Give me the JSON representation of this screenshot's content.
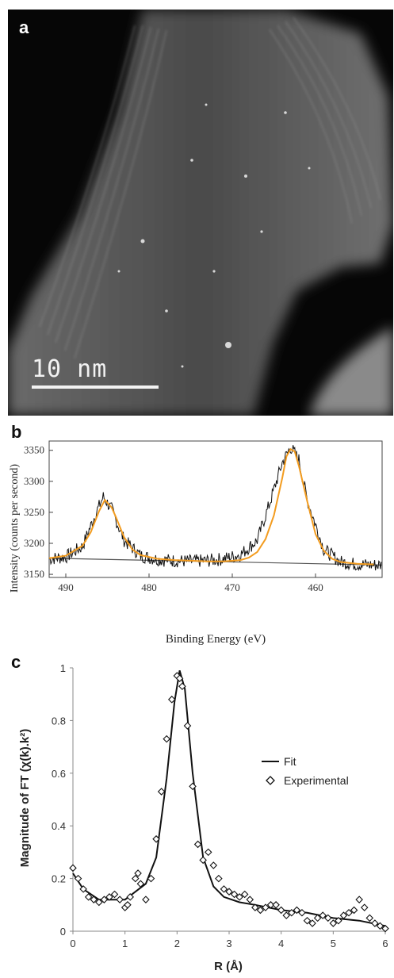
{
  "panel_a": {
    "letter": "a",
    "scale_bar": "10 nm"
  },
  "chart_data": [
    {
      "panel": "b",
      "type": "line",
      "xlabel": "Binding Energy (eV)",
      "ylabel": "Intensity (counts per second)",
      "xlim": [
        492,
        452
      ],
      "ylim": [
        3145,
        3365
      ],
      "x_ticks": [
        490,
        480,
        470,
        460
      ],
      "y_ticks": [
        3150,
        3200,
        3250,
        3300,
        3350
      ],
      "series": [
        {
          "style": "noisy data trace",
          "color": "#111111",
          "x": [
            492,
            490,
            488,
            486.5,
            485.5,
            484.5,
            483,
            481,
            479,
            477,
            475,
            473,
            471,
            469,
            467,
            465.5,
            464,
            463,
            462,
            461,
            459,
            457,
            455,
            453
          ],
          "y": [
            3175,
            3178,
            3195,
            3245,
            3275,
            3255,
            3205,
            3180,
            3174,
            3172,
            3171,
            3172,
            3175,
            3182,
            3205,
            3265,
            3330,
            3355,
            3335,
            3270,
            3190,
            3170,
            3166,
            3165
          ]
        },
        {
          "style": "peak fit",
          "color": "#f39c1f",
          "x": [
            492,
            490,
            488,
            487,
            486,
            485.3,
            484.5,
            484,
            483,
            482,
            481,
            479,
            477,
            475,
            473,
            471,
            469,
            468,
            467,
            466,
            465,
            464,
            463.5,
            463,
            462.5,
            462,
            461,
            460,
            459,
            458,
            457,
            455,
            453
          ],
          "y": [
            3176,
            3180,
            3196,
            3218,
            3252,
            3270,
            3258,
            3243,
            3210,
            3190,
            3181,
            3175,
            3173,
            3172,
            3171,
            3171,
            3173,
            3177,
            3186,
            3207,
            3245,
            3305,
            3340,
            3352,
            3348,
            3325,
            3268,
            3215,
            3188,
            3175,
            3170,
            3167,
            3166
          ]
        },
        {
          "style": "baseline",
          "color": "#555555",
          "x": [
            492,
            452
          ],
          "y": [
            3176,
            3165
          ]
        }
      ]
    },
    {
      "panel": "c",
      "type": "line",
      "xlabel": "R (Å)",
      "ylabel": "Magnitude of FT (χ(k).k²)",
      "xlim": [
        0,
        6
      ],
      "ylim": [
        0,
        1
      ],
      "x_ticks": [
        0,
        1,
        2,
        3,
        4,
        5,
        6
      ],
      "y_ticks": [
        0,
        0.2,
        0.4,
        0.6,
        0.8,
        1
      ],
      "y_tick_labels": [
        "0",
        "0.2",
        "0.4",
        "0.6",
        "0.8",
        "1"
      ],
      "legend": "right",
      "series": [
        {
          "name": "Fit",
          "style": "line",
          "x": [
            0,
            0.2,
            0.5,
            0.8,
            1.0,
            1.2,
            1.4,
            1.6,
            1.8,
            1.95,
            2.05,
            2.15,
            2.3,
            2.5,
            2.7,
            2.9,
            3.2,
            3.5,
            4.0,
            4.5,
            5.0,
            5.5,
            6.0
          ],
          "y": [
            0.22,
            0.16,
            0.12,
            0.12,
            0.12,
            0.15,
            0.18,
            0.28,
            0.58,
            0.87,
            0.99,
            0.92,
            0.6,
            0.28,
            0.17,
            0.13,
            0.11,
            0.1,
            0.08,
            0.07,
            0.05,
            0.04,
            0.02
          ]
        },
        {
          "name": "Experimental",
          "style": "diamond markers",
          "x": [
            0,
            0.1,
            0.2,
            0.3,
            0.4,
            0.5,
            0.6,
            0.7,
            0.8,
            0.9,
            1.0,
            1.05,
            1.1,
            1.2,
            1.25,
            1.3,
            1.4,
            1.5,
            1.6,
            1.7,
            1.8,
            1.9,
            2.0,
            2.05,
            2.1,
            2.2,
            2.3,
            2.4,
            2.5,
            2.6,
            2.7,
            2.8,
            2.9,
            3.0,
            3.1,
            3.2,
            3.3,
            3.4,
            3.5,
            3.6,
            3.7,
            3.8,
            3.9,
            4.0,
            4.1,
            4.2,
            4.3,
            4.4,
            4.5,
            4.6,
            4.7,
            4.8,
            4.9,
            5.0,
            5.1,
            5.2,
            5.3,
            5.4,
            5.5,
            5.6,
            5.7,
            5.8,
            5.9,
            6.0
          ],
          "y": [
            0.24,
            0.2,
            0.16,
            0.13,
            0.12,
            0.11,
            0.12,
            0.13,
            0.14,
            0.12,
            0.09,
            0.1,
            0.13,
            0.2,
            0.22,
            0.18,
            0.12,
            0.2,
            0.35,
            0.53,
            0.73,
            0.88,
            0.97,
            0.96,
            0.93,
            0.78,
            0.55,
            0.33,
            0.27,
            0.3,
            0.25,
            0.2,
            0.16,
            0.15,
            0.14,
            0.13,
            0.14,
            0.12,
            0.09,
            0.08,
            0.09,
            0.1,
            0.1,
            0.08,
            0.06,
            0.07,
            0.08,
            0.07,
            0.04,
            0.03,
            0.05,
            0.06,
            0.05,
            0.03,
            0.04,
            0.06,
            0.07,
            0.08,
            0.12,
            0.09,
            0.05,
            0.03,
            0.02,
            0.01
          ]
        }
      ]
    }
  ]
}
